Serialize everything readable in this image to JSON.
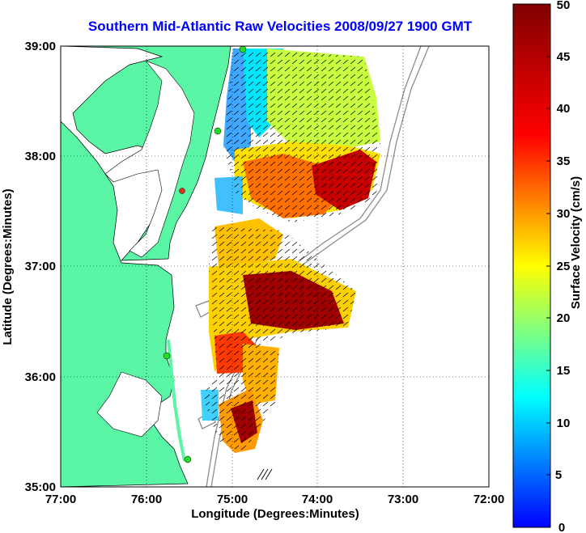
{
  "title": "Southern Mid-Atlantic Raw Velocities 2008/09/27 1900 GMT",
  "map": {
    "xlabel": "Longitude (Degrees:Minutes)",
    "ylabel": "Latitude (Degrees:Minutes)",
    "x_ticks": [
      "77:00",
      "76:00",
      "75:00",
      "74:00",
      "73:00",
      "72:00"
    ],
    "y_ticks": [
      "39:00",
      "38:00",
      "37:00",
      "36:00",
      "35:00"
    ],
    "lon_range": [
      -77,
      -72
    ],
    "lat_range": [
      35,
      39
    ],
    "grid": "dotted",
    "land_color": "#5af5a5",
    "bathymetry_color": "#8c8c8c",
    "station_color": "#22dd22",
    "highlight_station_color": "#e03020"
  },
  "colorbar": {
    "label": "Surface Velocity (cm/s)",
    "ticks": [
      "0",
      "5",
      "10",
      "15",
      "20",
      "25",
      "30",
      "35",
      "40",
      "45",
      "50"
    ],
    "range": [
      0,
      50
    ],
    "colormap": "jet"
  }
}
